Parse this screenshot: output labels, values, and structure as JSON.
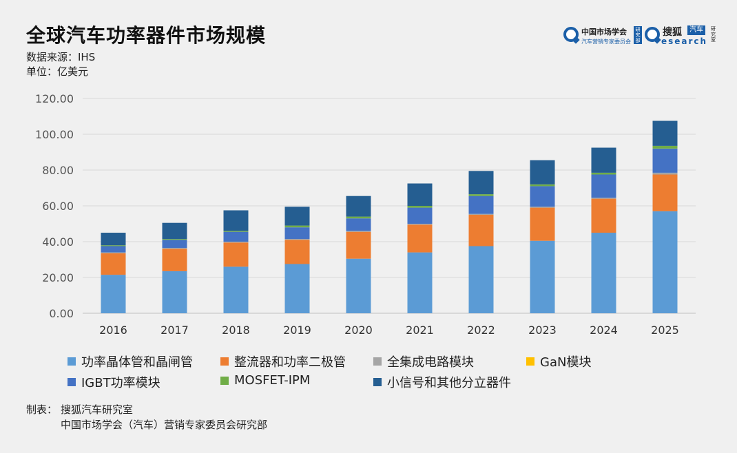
{
  "title": "全球汽车功率器件市场规模",
  "source": "数据来源：IHS",
  "unit": "单位：亿美元",
  "logos": {
    "left_name": "中国市场学会",
    "left_sub": "汽车营销专家委员会",
    "left_badge": "研究部",
    "right_name": "搜狐",
    "right_badge": "汽车",
    "right_research": "esearch",
    "right_vert": "研究室"
  },
  "footer": {
    "label": "制表：",
    "line1": "搜狐汽车研究室",
    "line2": "中国市场学会（汽车）营销专家委员会研究部"
  },
  "colors": {
    "background": "#f0f0f0",
    "grid": "#d9d9d9",
    "axis_text": "#555555"
  },
  "chart_data": {
    "type": "bar",
    "stacked": true,
    "categories": [
      "2016",
      "2017",
      "2018",
      "2019",
      "2020",
      "2021",
      "2022",
      "2023",
      "2024",
      "2025"
    ],
    "y_tick_labels": [
      "0.00",
      "20.00",
      "40.00",
      "60.00",
      "80.00",
      "100.00",
      "120.00"
    ],
    "ylim": [
      0,
      120
    ],
    "grid": true,
    "legend_position": "bottom",
    "series": [
      {
        "name": "功率晶体管和晶闸管",
        "color": "#5b9bd5",
        "values": [
          21.5,
          23.5,
          26.0,
          27.5,
          30.5,
          34.0,
          37.5,
          40.5,
          45.0,
          57.0
        ]
      },
      {
        "name": "整流器和功率二极管",
        "color": "#ed7d31",
        "values": [
          12.0,
          12.5,
          13.5,
          13.5,
          15.0,
          15.5,
          17.5,
          18.5,
          19.0,
          20.5
        ]
      },
      {
        "name": "全集成电路模块",
        "color": "#a5a5a5",
        "values": [
          0.5,
          0.5,
          0.5,
          0.5,
          0.5,
          0.5,
          0.5,
          0.5,
          0.5,
          1.0
        ]
      },
      {
        "name": "GaN模块",
        "color": "#ffc000",
        "values": [
          0,
          0,
          0,
          0,
          0,
          0,
          0,
          0,
          0,
          0
        ]
      },
      {
        "name": "IGBT功率模块",
        "color": "#4472c4",
        "values": [
          3.5,
          4.5,
          5.5,
          6.5,
          7.0,
          9.0,
          10.0,
          11.5,
          13.0,
          13.5
        ]
      },
      {
        "name": "MOSFET-IPM",
        "color": "#70ad47",
        "values": [
          0.5,
          0.5,
          0.5,
          1.0,
          1.0,
          1.0,
          1.0,
          1.0,
          1.0,
          1.5
        ]
      },
      {
        "name": "小信号和其他分立器件",
        "color": "#255e91",
        "values": [
          7.0,
          9.0,
          11.5,
          10.5,
          11.5,
          12.5,
          13.0,
          13.5,
          14.0,
          14.0
        ]
      }
    ]
  }
}
